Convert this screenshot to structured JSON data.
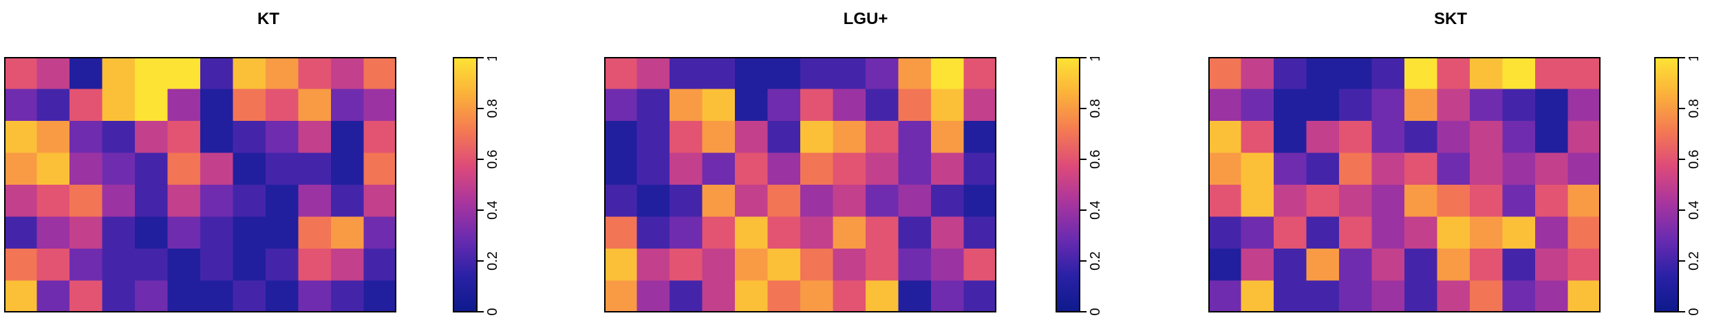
{
  "chart_data": [
    {
      "type": "heatmap",
      "title": "KT",
      "colorbar": {
        "min": 0,
        "max": 1,
        "ticks": [
          0,
          0.2,
          0.4,
          0.6,
          0.8,
          1
        ],
        "tick_labels": [
          "0",
          "0.2",
          "0.4",
          "0.6",
          "0.8",
          "1"
        ]
      },
      "colormap": [
        "#0d1a8c",
        "#2a21a6",
        "#6a2bb0",
        "#a8359e",
        "#dd4a7a",
        "#f47a52",
        "#fbb13a",
        "#fde334"
      ],
      "grid": {
        "rows": 8,
        "cols": 12
      },
      "values": [
        [
          0.6,
          0.5,
          0.1,
          0.9,
          1.0,
          1.0,
          0.2,
          0.9,
          0.8,
          0.6,
          0.5,
          0.7
        ],
        [
          0.3,
          0.2,
          0.6,
          0.9,
          1.0,
          0.4,
          0.1,
          0.7,
          0.6,
          0.8,
          0.3,
          0.4
        ],
        [
          0.9,
          0.8,
          0.3,
          0.2,
          0.5,
          0.6,
          0.1,
          0.2,
          0.3,
          0.5,
          0.1,
          0.6
        ],
        [
          0.8,
          0.9,
          0.4,
          0.3,
          0.2,
          0.7,
          0.5,
          0.1,
          0.2,
          0.2,
          0.1,
          0.7
        ],
        [
          0.5,
          0.6,
          0.7,
          0.4,
          0.2,
          0.5,
          0.3,
          0.2,
          0.1,
          0.4,
          0.2,
          0.5
        ],
        [
          0.2,
          0.4,
          0.5,
          0.2,
          0.1,
          0.3,
          0.2,
          0.1,
          0.1,
          0.7,
          0.8,
          0.3
        ],
        [
          0.7,
          0.6,
          0.3,
          0.2,
          0.2,
          0.1,
          0.2,
          0.1,
          0.2,
          0.6,
          0.5,
          0.2
        ],
        [
          0.9,
          0.3,
          0.6,
          0.2,
          0.3,
          0.1,
          0.1,
          0.2,
          0.1,
          0.3,
          0.2,
          0.1
        ]
      ]
    },
    {
      "type": "heatmap",
      "title": "LGU+",
      "colorbar": {
        "min": 0,
        "max": 1,
        "ticks": [
          0,
          0.2,
          0.4,
          0.6,
          0.8,
          1
        ],
        "tick_labels": [
          "0",
          "0.2",
          "0.4",
          "0.6",
          "0.8",
          "1"
        ]
      },
      "colormap": [
        "#0d1a8c",
        "#2a21a6",
        "#6a2bb0",
        "#a8359e",
        "#dd4a7a",
        "#f47a52",
        "#fbb13a",
        "#fde334"
      ],
      "grid": {
        "rows": 8,
        "cols": 12
      },
      "values": [
        [
          0.6,
          0.5,
          0.2,
          0.2,
          0.1,
          0.1,
          0.2,
          0.2,
          0.3,
          0.8,
          1.0,
          0.6
        ],
        [
          0.3,
          0.2,
          0.8,
          0.9,
          0.1,
          0.3,
          0.6,
          0.4,
          0.2,
          0.7,
          0.9,
          0.5
        ],
        [
          0.1,
          0.2,
          0.6,
          0.8,
          0.5,
          0.2,
          0.9,
          0.8,
          0.6,
          0.3,
          0.8,
          0.1
        ],
        [
          0.1,
          0.2,
          0.5,
          0.3,
          0.6,
          0.4,
          0.7,
          0.6,
          0.5,
          0.3,
          0.5,
          0.2
        ],
        [
          0.2,
          0.1,
          0.2,
          0.8,
          0.5,
          0.7,
          0.4,
          0.5,
          0.3,
          0.4,
          0.2,
          0.1
        ],
        [
          0.7,
          0.2,
          0.3,
          0.6,
          0.9,
          0.6,
          0.5,
          0.8,
          0.6,
          0.2,
          0.5,
          0.2
        ],
        [
          0.9,
          0.5,
          0.6,
          0.5,
          0.8,
          0.9,
          0.7,
          0.5,
          0.6,
          0.3,
          0.4,
          0.6
        ],
        [
          0.8,
          0.4,
          0.2,
          0.5,
          0.9,
          0.7,
          0.8,
          0.6,
          0.9,
          0.1,
          0.3,
          0.2
        ]
      ]
    },
    {
      "type": "heatmap",
      "title": "SKT",
      "colorbar": {
        "min": 0,
        "max": 1,
        "ticks": [
          0,
          0.2,
          0.4,
          0.6,
          0.8,
          1
        ],
        "tick_labels": [
          "0",
          "0.2",
          "0.4",
          "0.6",
          "0.8",
          "1"
        ]
      },
      "colormap": [
        "#0d1a8c",
        "#2a21a6",
        "#6a2bb0",
        "#a8359e",
        "#dd4a7a",
        "#f47a52",
        "#fbb13a",
        "#fde334"
      ],
      "grid": {
        "rows": 8,
        "cols": 12
      },
      "values": [
        [
          0.7,
          0.5,
          0.2,
          0.1,
          0.1,
          0.2,
          1.0,
          0.6,
          0.9,
          1.0,
          0.6,
          0.6
        ],
        [
          0.4,
          0.3,
          0.1,
          0.1,
          0.2,
          0.3,
          0.8,
          0.5,
          0.3,
          0.2,
          0.1,
          0.4
        ],
        [
          0.9,
          0.6,
          0.1,
          0.5,
          0.6,
          0.3,
          0.2,
          0.4,
          0.5,
          0.3,
          0.1,
          0.5
        ],
        [
          0.8,
          0.9,
          0.3,
          0.2,
          0.7,
          0.5,
          0.6,
          0.3,
          0.5,
          0.4,
          0.5,
          0.4
        ],
        [
          0.6,
          0.9,
          0.5,
          0.6,
          0.5,
          0.4,
          0.8,
          0.7,
          0.6,
          0.3,
          0.6,
          0.8
        ],
        [
          0.2,
          0.3,
          0.6,
          0.2,
          0.6,
          0.4,
          0.5,
          0.9,
          0.8,
          0.9,
          0.4,
          0.7
        ],
        [
          0.1,
          0.5,
          0.2,
          0.8,
          0.3,
          0.5,
          0.2,
          0.8,
          0.6,
          0.2,
          0.5,
          0.6
        ],
        [
          0.3,
          0.9,
          0.2,
          0.2,
          0.3,
          0.4,
          0.2,
          0.5,
          0.7,
          0.3,
          0.4,
          0.9
        ]
      ]
    }
  ]
}
